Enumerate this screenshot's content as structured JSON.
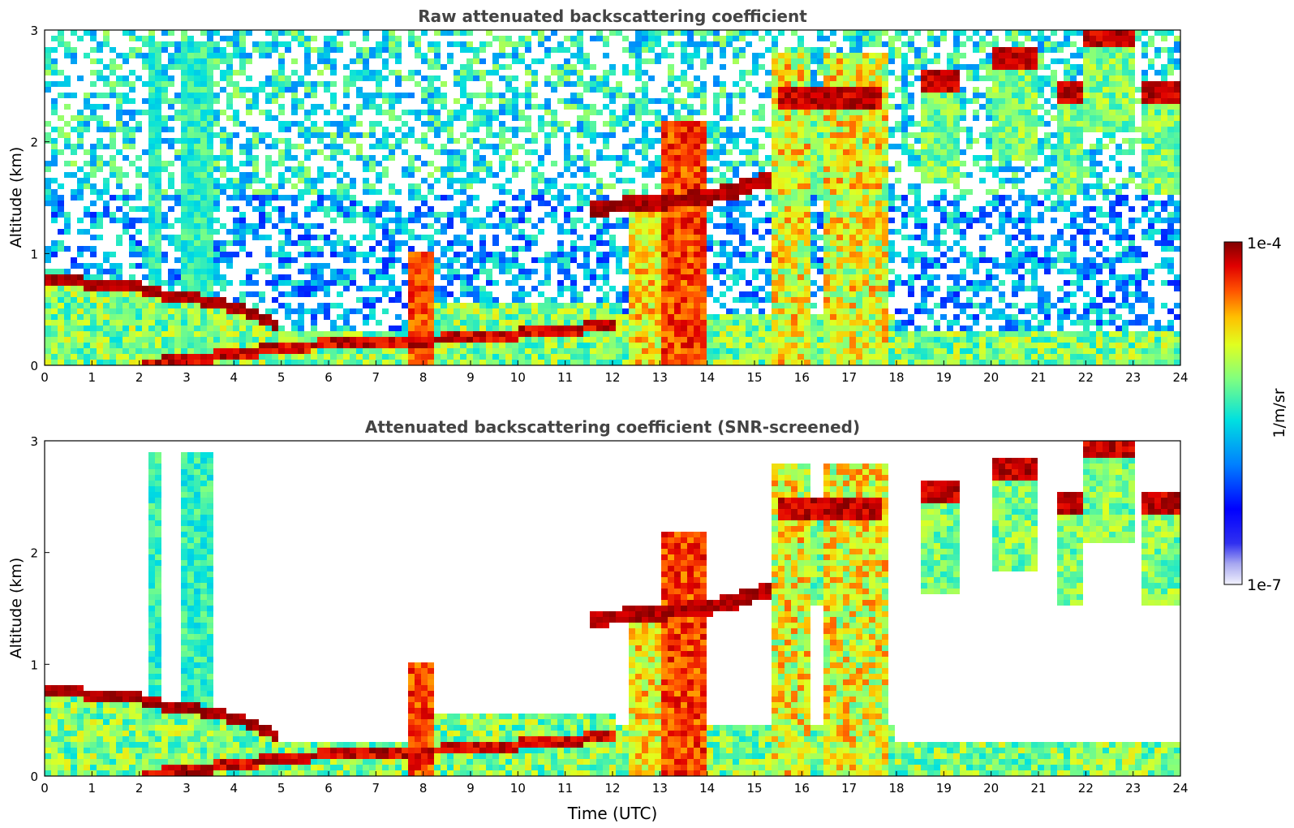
{
  "chart_data": [
    {
      "type": "heatmap",
      "title": "Raw attenuated backscattering coefficient",
      "xlabel": "",
      "ylabel": "Altitude (km)",
      "xlim": [
        0,
        24
      ],
      "ylim": [
        0,
        3
      ],
      "xticks": [
        "0",
        "1",
        "2",
        "3",
        "4",
        "5",
        "6",
        "7",
        "8",
        "9",
        "10",
        "11",
        "12",
        "13",
        "14",
        "15",
        "16",
        "17",
        "18",
        "19",
        "20",
        "21",
        "22",
        "23",
        "24"
      ],
      "yticks": [
        "0",
        "1",
        "2",
        "3"
      ],
      "screened": false
    },
    {
      "type": "heatmap",
      "title": "Attenuated backscattering coefficient (SNR-screened)",
      "xlabel": "Time (UTC)",
      "ylabel": "Altitude (km)",
      "xlim": [
        0,
        24
      ],
      "ylim": [
        0,
        3
      ],
      "xticks": [
        "0",
        "1",
        "2",
        "3",
        "4",
        "5",
        "6",
        "7",
        "8",
        "9",
        "10",
        "11",
        "12",
        "13",
        "14",
        "15",
        "16",
        "17",
        "18",
        "19",
        "20",
        "21",
        "22",
        "23",
        "24"
      ],
      "yticks": [
        "0",
        "1",
        "2",
        "3"
      ],
      "screened": true
    }
  ],
  "colorbar": {
    "label": "1/m/sr",
    "max_label": "1e-4",
    "min_label": "1e-7",
    "colormap": "jet",
    "scale": "log",
    "range": [
      1e-07,
      0.0001
    ]
  },
  "features": {
    "boundary_layer_top": [
      [
        0,
        0.77
      ],
      [
        1,
        0.73
      ],
      [
        2,
        0.7
      ],
      [
        2.5,
        0.63
      ],
      [
        3,
        0.6
      ],
      [
        3.5,
        0.57
      ],
      [
        4,
        0.52
      ],
      [
        4.5,
        0.45
      ],
      [
        5,
        0.35
      ]
    ],
    "surface_layer": [
      [
        2,
        0.01
      ],
      [
        3,
        0.05
      ],
      [
        4,
        0.1
      ],
      [
        5,
        0.15
      ],
      [
        6,
        0.19
      ],
      [
        7,
        0.22
      ],
      [
        8,
        0.22
      ],
      [
        9,
        0.25
      ],
      [
        10,
        0.28
      ],
      [
        11,
        0.32
      ],
      [
        12,
        0.35
      ]
    ],
    "cloud_base_layer": [
      [
        11.5,
        1.38
      ],
      [
        12,
        1.42
      ],
      [
        13,
        1.46
      ],
      [
        14,
        1.5
      ],
      [
        14.5,
        1.55
      ],
      [
        15,
        1.63
      ],
      [
        15.3,
        1.67
      ]
    ],
    "upper_clouds": [
      {
        "t0": 15.5,
        "t1": 17.7,
        "alt": 2.4
      },
      {
        "t0": 18.5,
        "t1": 19.4,
        "alt": 2.55
      },
      {
        "t0": 20.0,
        "t1": 21.0,
        "alt": 2.75
      },
      {
        "t0": 21.4,
        "t1": 21.9,
        "alt": 2.45
      },
      {
        "t0": 22.0,
        "t1": 23.0,
        "alt": 2.97
      },
      {
        "t0": 23.2,
        "t1": 24.0,
        "alt": 2.45
      }
    ]
  }
}
